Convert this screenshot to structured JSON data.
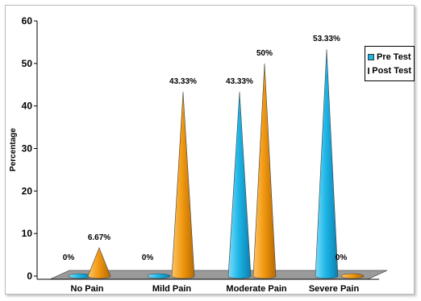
{
  "chart_data": {
    "type": "bar",
    "title": "",
    "xlabel": "",
    "ylabel": "Percentage",
    "ylim": [
      0,
      60
    ],
    "yticks": [
      0,
      10,
      20,
      30,
      40,
      50,
      60
    ],
    "categories": [
      "No Pain",
      "Mild Pain",
      "Moderate Pain",
      "Severe Pain"
    ],
    "series": [
      {
        "name": "Pre Test",
        "values": [
          0,
          0,
          43.33,
          53.33
        ],
        "labels": [
          "0%",
          "0%",
          "43.33%",
          "53.33%"
        ],
        "color": "#1eb7e8"
      },
      {
        "name": "Post Test",
        "values": [
          6.67,
          43.33,
          50,
          0
        ],
        "labels": [
          "6.67%",
          "43.33%",
          "50%",
          "0%"
        ],
        "color": "#f39a12"
      }
    ],
    "legend_position": "right",
    "grid": false,
    "mark_shape": "cone"
  }
}
